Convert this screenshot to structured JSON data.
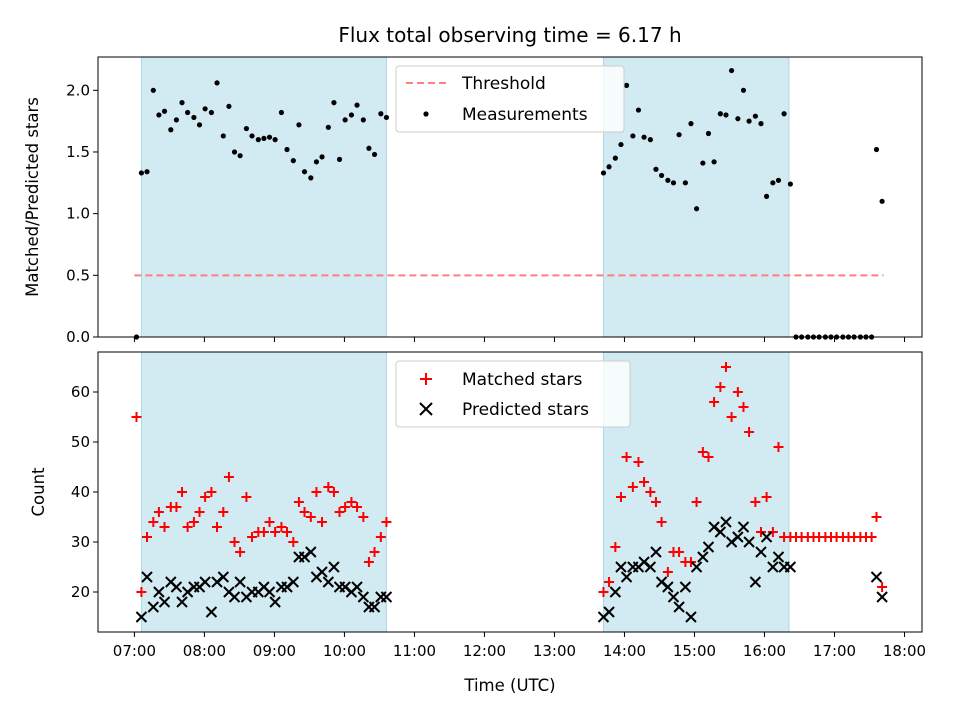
{
  "title": "Flux total observing time = 6.17 h",
  "colors": {
    "span": "#add8e6",
    "threshold": "#ff7f7f",
    "measurements": "#000000",
    "matched": "#ff0000",
    "predicted": "#000000"
  },
  "chart_data": [
    {
      "type": "scatter",
      "ylabel": "Matched/Predicted stars",
      "xlim": [
        6.48,
        18.25
      ],
      "ylim": [
        0.0,
        2.27
      ],
      "yticks": [
        "0.0",
        "0.5",
        "1.0",
        "1.5",
        "2.0"
      ],
      "ytick_values": [
        0.0,
        0.5,
        1.0,
        1.5,
        2.0
      ],
      "shaded_spans": [
        [
          7.1,
          10.6
        ],
        [
          13.7,
          16.35
        ]
      ],
      "legend": {
        "position": "top-center",
        "entries": [
          "Threshold",
          "Measurements"
        ]
      },
      "series": [
        {
          "name": "Threshold",
          "kind": "line",
          "style": "dashed",
          "x": [
            7.0,
            17.7
          ],
          "y": [
            0.5,
            0.5
          ]
        },
        {
          "name": "Measurements",
          "kind": "scatter",
          "marker": "dot",
          "x": [
            7.03,
            7.1,
            7.18,
            7.27,
            7.35,
            7.43,
            7.52,
            7.6,
            7.68,
            7.76,
            7.85,
            7.93,
            8.01,
            8.1,
            8.18,
            8.27,
            8.35,
            8.43,
            8.51,
            8.6,
            8.68,
            8.77,
            8.85,
            8.93,
            9.01,
            9.1,
            9.18,
            9.27,
            9.35,
            9.43,
            9.52,
            9.6,
            9.68,
            9.77,
            9.85,
            9.93,
            10.01,
            10.1,
            10.18,
            10.27,
            10.35,
            10.43,
            10.52,
            10.6,
            13.7,
            13.78,
            13.87,
            13.95,
            14.03,
            14.12,
            14.2,
            14.28,
            14.37,
            14.45,
            14.53,
            14.62,
            14.7,
            14.78,
            14.87,
            14.95,
            15.03,
            15.12,
            15.2,
            15.28,
            15.37,
            15.45,
            15.53,
            15.62,
            15.7,
            15.78,
            15.87,
            15.95,
            16.03,
            16.12,
            16.2,
            16.28,
            16.37,
            16.45,
            16.53,
            16.62,
            16.7,
            16.78,
            16.87,
            16.95,
            17.03,
            17.12,
            17.2,
            17.28,
            17.37,
            17.45,
            17.53,
            17.6,
            17.68
          ],
          "y": [
            0.0,
            1.33,
            1.34,
            2.0,
            1.8,
            1.83,
            1.68,
            1.76,
            1.9,
            1.82,
            1.78,
            1.72,
            1.85,
            1.82,
            2.06,
            1.63,
            1.87,
            1.5,
            1.47,
            1.69,
            1.63,
            1.6,
            1.61,
            1.62,
            1.6,
            1.82,
            1.52,
            1.43,
            1.72,
            1.34,
            1.29,
            1.42,
            1.46,
            1.7,
            1.9,
            1.44,
            1.76,
            1.8,
            1.88,
            1.76,
            1.53,
            1.48,
            1.81,
            1.78,
            1.33,
            1.38,
            1.45,
            1.56,
            2.04,
            1.63,
            1.84,
            1.62,
            1.6,
            1.36,
            1.31,
            1.27,
            1.25,
            1.64,
            1.25,
            1.73,
            1.04,
            1.41,
            1.65,
            1.42,
            1.81,
            1.8,
            2.16,
            1.77,
            2.0,
            1.75,
            1.79,
            1.73,
            1.14,
            1.25,
            1.27,
            1.81,
            1.24,
            0.0,
            0.0,
            0.0,
            0.0,
            0.0,
            0.0,
            0.0,
            0.0,
            0.0,
            0.0,
            0.0,
            0.0,
            0.0,
            0.0,
            1.52,
            1.1
          ]
        }
      ]
    },
    {
      "type": "scatter",
      "ylabel": "Count",
      "xlabel": "Time (UTC)",
      "xlim": [
        6.48,
        18.25
      ],
      "ylim": [
        12,
        68
      ],
      "yticks": [
        "20",
        "30",
        "40",
        "50",
        "60"
      ],
      "ytick_values": [
        20,
        30,
        40,
        50,
        60
      ],
      "xticks": [
        "07:00",
        "08:00",
        "09:00",
        "10:00",
        "11:00",
        "12:00",
        "13:00",
        "14:00",
        "15:00",
        "16:00",
        "17:00",
        "18:00"
      ],
      "xtick_values": [
        7,
        8,
        9,
        10,
        11,
        12,
        13,
        14,
        15,
        16,
        17,
        18
      ],
      "shaded_spans": [
        [
          7.1,
          10.6
        ],
        [
          13.7,
          16.35
        ]
      ],
      "legend": {
        "position": "top-center",
        "entries": [
          "Matched stars",
          "Predicted stars"
        ]
      },
      "series": [
        {
          "name": "Matched stars",
          "marker": "plus",
          "x": [
            7.03,
            7.1,
            7.18,
            7.27,
            7.35,
            7.43,
            7.52,
            7.6,
            7.68,
            7.76,
            7.85,
            7.93,
            8.01,
            8.1,
            8.18,
            8.27,
            8.35,
            8.43,
            8.51,
            8.6,
            8.68,
            8.77,
            8.85,
            8.93,
            9.01,
            9.1,
            9.18,
            9.27,
            9.35,
            9.43,
            9.52,
            9.6,
            9.68,
            9.77,
            9.85,
            9.93,
            10.01,
            10.1,
            10.18,
            10.27,
            10.35,
            10.43,
            10.52,
            10.6,
            13.7,
            13.78,
            13.87,
            13.95,
            14.03,
            14.12,
            14.2,
            14.28,
            14.37,
            14.45,
            14.53,
            14.62,
            14.7,
            14.78,
            14.87,
            14.95,
            15.03,
            15.12,
            15.2,
            15.28,
            15.37,
            15.45,
            15.53,
            15.62,
            15.7,
            15.78,
            15.87,
            15.95,
            16.03,
            16.12,
            16.2,
            16.28,
            16.37,
            16.45,
            16.53,
            16.62,
            16.7,
            16.78,
            16.87,
            16.95,
            17.03,
            17.12,
            17.2,
            17.28,
            17.37,
            17.45,
            17.53,
            17.6,
            17.68
          ],
          "y": [
            55,
            20,
            31,
            34,
            36,
            33,
            37,
            37,
            40,
            33,
            34,
            36,
            39,
            40,
            33,
            36,
            43,
            30,
            28,
            39,
            31,
            32,
            32,
            34,
            32,
            33,
            32,
            30,
            38,
            36,
            35,
            40,
            34,
            41,
            40,
            36,
            37,
            38,
            37,
            35,
            26,
            28,
            31,
            34,
            20,
            22,
            29,
            39,
            47,
            41,
            46,
            42,
            40,
            38,
            34,
            24,
            28,
            28,
            26,
            26,
            38,
            48,
            47,
            58,
            61,
            65,
            55,
            60,
            57,
            52,
            38,
            32,
            39,
            32,
            49,
            31,
            31,
            31,
            31,
            31,
            31,
            31,
            31,
            31,
            31,
            31,
            31,
            31,
            31,
            31,
            31,
            35,
            21
          ]
        },
        {
          "name": "Predicted stars",
          "marker": "cross",
          "x": [
            7.1,
            7.18,
            7.27,
            7.35,
            7.43,
            7.52,
            7.6,
            7.68,
            7.76,
            7.85,
            7.93,
            8.01,
            8.1,
            8.18,
            8.27,
            8.35,
            8.43,
            8.51,
            8.6,
            8.68,
            8.77,
            8.85,
            8.93,
            9.01,
            9.1,
            9.18,
            9.27,
            9.35,
            9.43,
            9.52,
            9.6,
            9.68,
            9.77,
            9.85,
            9.93,
            10.01,
            10.1,
            10.18,
            10.27,
            10.35,
            10.43,
            10.52,
            10.6,
            13.7,
            13.78,
            13.87,
            13.95,
            14.03,
            14.12,
            14.2,
            14.28,
            14.37,
            14.45,
            14.53,
            14.62,
            14.7,
            14.78,
            14.87,
            14.95,
            15.03,
            15.12,
            15.2,
            15.28,
            15.37,
            15.45,
            15.53,
            15.62,
            15.7,
            15.78,
            15.87,
            15.95,
            16.03,
            16.12,
            16.2,
            16.28,
            16.37,
            17.6,
            17.68
          ],
          "y": [
            15,
            23,
            17,
            20,
            18,
            22,
            21,
            18,
            20,
            21,
            21,
            22,
            16,
            22,
            23,
            20,
            19,
            22,
            19,
            20,
            20,
            21,
            20,
            18,
            21,
            21,
            22,
            27,
            27,
            28,
            23,
            24,
            22,
            25,
            21,
            21,
            20,
            21,
            19,
            17,
            17,
            19,
            19,
            15,
            16,
            20,
            25,
            23,
            25,
            25,
            26,
            25,
            28,
            22,
            21,
            19,
            17,
            21,
            15,
            25,
            27,
            29,
            33,
            32,
            34,
            30,
            31,
            33,
            30,
            22,
            28,
            31,
            25,
            27,
            25,
            25,
            23,
            19
          ]
        }
      ]
    }
  ]
}
